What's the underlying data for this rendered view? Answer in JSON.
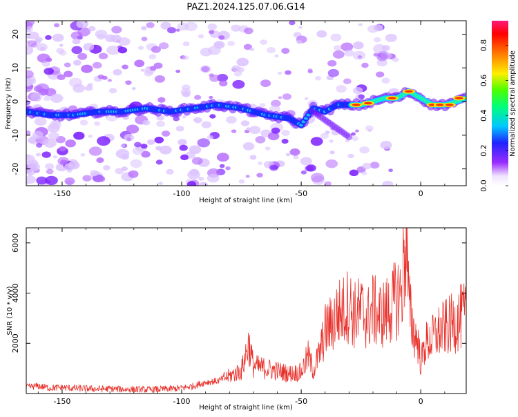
{
  "figure": {
    "title": "PAZ1.2024.125.07.06.G14"
  },
  "chart_data": [
    {
      "type": "heatmap",
      "xlabel": "Height of straight line (km)",
      "ylabel": "Frequency (Hz)",
      "xlim": [
        -165,
        19
      ],
      "ylim": [
        -25,
        24
      ],
      "xticks": [
        -150,
        -100,
        -50,
        0
      ],
      "yticks": [
        -20,
        -10,
        0,
        10,
        20
      ],
      "grid": false,
      "colormap": "gist_rainbow (white at low values)",
      "ridge": {
        "x": [
          -165,
          -155,
          -145,
          -135,
          -125,
          -115,
          -105,
          -95,
          -85,
          -75,
          -65,
          -55,
          -50,
          -45,
          -40,
          -35,
          -30,
          -25,
          -20,
          -15,
          -10,
          -5,
          0,
          5,
          10,
          15,
          19
        ],
        "y": [
          -3,
          -4,
          -4,
          -3,
          -3,
          -2,
          -3,
          -2,
          -1,
          -2,
          -4,
          -5,
          -7,
          -2,
          -3,
          -1,
          -1,
          -1,
          0,
          1,
          1,
          3,
          1,
          -1,
          -1,
          0,
          1
        ]
      }
    },
    {
      "type": "line",
      "xlabel": "Height of straight line (km)",
      "ylabel": "SNR (10 * v/v)",
      "xlim": [
        -165,
        19
      ],
      "ylim": [
        0,
        6600
      ],
      "xticks": [
        -150,
        -100,
        -50,
        0
      ],
      "yticks": [
        2000,
        4000,
        6000
      ],
      "grid": false,
      "color": "#e8302a",
      "series": [
        {
          "x": [
            -165,
            -160,
            -155,
            -150,
            -145,
            -140,
            -135,
            -130,
            -125,
            -120,
            -115,
            -110,
            -105,
            -100,
            -95,
            -90,
            -85,
            -80,
            -75,
            -72,
            -70,
            -65,
            -60,
            -55,
            -50,
            -47,
            -45,
            -42,
            -40,
            -37,
            -35,
            -32,
            -30,
            -28,
            -25,
            -22,
            -20,
            -18,
            -15,
            -12,
            -10,
            -8,
            -6,
            -5,
            -3,
            -1,
            0,
            2,
            5,
            8,
            10,
            12,
            15,
            18,
            19
          ],
          "y": [
            250,
            300,
            220,
            240,
            210,
            200,
            180,
            190,
            170,
            160,
            150,
            170,
            180,
            220,
            300,
            450,
            500,
            700,
            900,
            2000,
            1100,
            1000,
            900,
            800,
            850,
            1500,
            900,
            1700,
            2500,
            2800,
            3200,
            3300,
            3600,
            3100,
            3300,
            3000,
            3400,
            3100,
            3200,
            3500,
            3800,
            4000,
            6500,
            3500,
            2500,
            2000,
            1200,
            2000,
            2200,
            2500,
            2600,
            2700,
            2900,
            3100,
            2900
          ]
        }
      ]
    },
    {
      "type": "colorbar",
      "label": "Normalized spectral amplitude",
      "ticks": [
        0.0,
        0.2,
        0.4,
        0.6,
        0.8
      ],
      "range": [
        0,
        0.94
      ]
    }
  ]
}
